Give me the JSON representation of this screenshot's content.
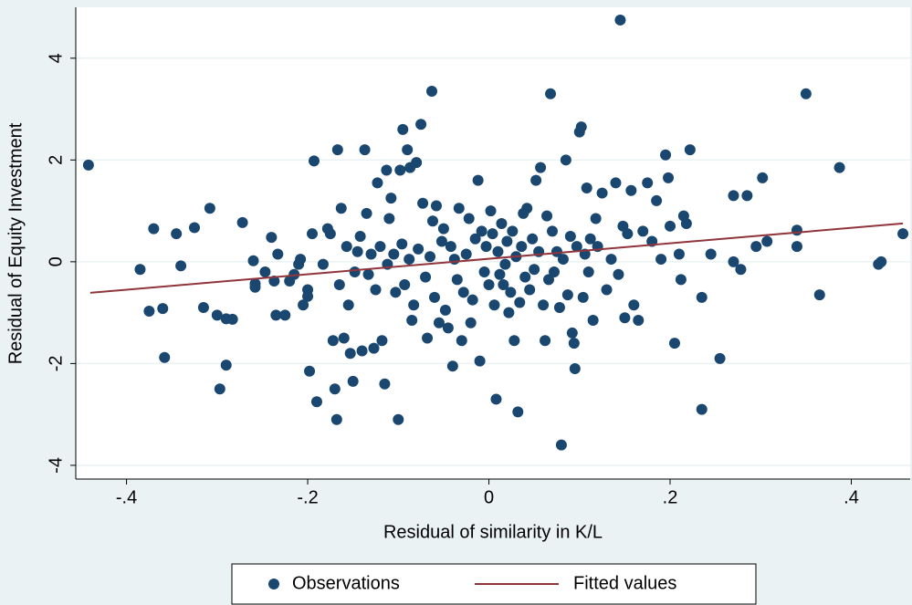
{
  "chart_data": {
    "type": "scatter",
    "x_label": "Residual of similarity in K/L",
    "y_label": "Residual of Equity Investment",
    "xlim": [
      -0.456,
      0.465
    ],
    "ylim": [
      -4.27,
      5.0
    ],
    "xticks": [
      {
        "value": -0.4,
        "label": "-.4"
      },
      {
        "value": -0.2,
        "label": "-.2"
      },
      0,
      {
        "value": 0.2,
        "label": ".2"
      },
      {
        "value": 0.4,
        "label": ".4"
      }
    ],
    "yticks": [
      -4,
      -2,
      0,
      2,
      4
    ],
    "grid": true,
    "legend": "bottom",
    "series": [
      {
        "name": "Observations",
        "type": "scatter",
        "color": "#1a476f",
        "x": [
          -0.442,
          -0.385,
          -0.37,
          -0.375,
          -0.36,
          -0.358,
          -0.345,
          -0.34,
          -0.325,
          -0.315,
          -0.308,
          -0.3,
          -0.297,
          -0.29,
          -0.29,
          -0.283,
          -0.272,
          -0.26,
          -0.258,
          -0.258,
          -0.247,
          -0.24,
          -0.237,
          -0.235,
          -0.233,
          -0.225,
          -0.22,
          -0.215,
          -0.21,
          -0.208,
          -0.205,
          -0.2,
          -0.2,
          -0.198,
          -0.195,
          -0.193,
          -0.19,
          -0.183,
          -0.178,
          -0.175,
          -0.172,
          -0.17,
          -0.168,
          -0.167,
          -0.165,
          -0.163,
          -0.16,
          -0.157,
          -0.155,
          -0.153,
          -0.15,
          -0.148,
          -0.145,
          -0.142,
          -0.14,
          -0.137,
          -0.135,
          -0.133,
          -0.13,
          -0.127,
          -0.125,
          -0.123,
          -0.12,
          -0.118,
          -0.115,
          -0.113,
          -0.112,
          -0.11,
          -0.108,
          -0.105,
          -0.103,
          -0.1,
          -0.098,
          -0.096,
          -0.095,
          -0.093,
          -0.09,
          -0.088,
          -0.087,
          -0.085,
          -0.083,
          -0.08,
          -0.078,
          -0.075,
          -0.073,
          -0.07,
          -0.068,
          -0.065,
          -0.063,
          -0.062,
          -0.06,
          -0.058,
          -0.055,
          -0.052,
          -0.05,
          -0.048,
          -0.045,
          -0.042,
          -0.04,
          -0.038,
          -0.035,
          -0.033,
          -0.03,
          -0.028,
          -0.025,
          -0.022,
          -0.02,
          -0.018,
          -0.015,
          -0.012,
          -0.01,
          -0.008,
          -0.005,
          -0.003,
          0,
          0.002,
          0.004,
          0.006,
          0.008,
          0.01,
          0.012,
          0.014,
          0.016,
          0.018,
          0.02,
          0.022,
          0.024,
          0.026,
          0.028,
          0.03,
          0.032,
          0.034,
          0.036,
          0.038,
          0.04,
          0.042,
          0.045,
          0.048,
          0.05,
          0.052,
          0.055,
          0.057,
          0.06,
          0.062,
          0.064,
          0.066,
          0.068,
          0.07,
          0.072,
          0.075,
          0.078,
          0.08,
          0.082,
          0.085,
          0.087,
          0.09,
          0.092,
          0.094,
          0.095,
          0.097,
          0.1,
          0.102,
          0.104,
          0.106,
          0.108,
          0.11,
          0.112,
          0.115,
          0.118,
          0.12,
          0.125,
          0.13,
          0.135,
          0.14,
          0.143,
          0.145,
          0.148,
          0.15,
          0.153,
          0.157,
          0.16,
          0.165,
          0.17,
          0.175,
          0.18,
          0.185,
          0.19,
          0.195,
          0.198,
          0.2,
          0.205,
          0.21,
          0.212,
          0.215,
          0.218,
          0.222,
          0.235,
          0.235,
          0.245,
          0.255,
          0.27,
          0.27,
          0.278,
          0.285,
          0.295,
          0.302,
          0.307,
          0.34,
          0.34,
          0.35,
          0.365,
          0.387,
          0.43,
          0.433,
          0.457
        ],
        "values": [
          1.9,
          -0.15,
          0.65,
          -0.97,
          -0.92,
          -1.88,
          0.55,
          -0.08,
          0.67,
          -0.9,
          1.05,
          -1.05,
          -2.5,
          -1.12,
          -2.03,
          -1.13,
          0.77,
          0.02,
          -0.43,
          -0.5,
          -0.2,
          0.48,
          -0.38,
          -1.05,
          0.15,
          -1.05,
          -0.38,
          -0.25,
          -0.05,
          0.05,
          -0.85,
          -0.55,
          -0.68,
          -2.15,
          0.55,
          1.98,
          -2.75,
          -0.05,
          0.65,
          0.55,
          -1.55,
          -2.5,
          -3.1,
          2.2,
          -0.45,
          1.05,
          -1.5,
          0.3,
          -0.85,
          -1.8,
          -2.35,
          -0.2,
          0.2,
          0.5,
          -1.75,
          2.2,
          0.95,
          -0.25,
          0.15,
          -1.7,
          -0.55,
          1.55,
          0.3,
          -1.55,
          -2.4,
          1.8,
          -0.05,
          0.85,
          1.25,
          0.15,
          -0.6,
          -3.1,
          1.8,
          0.35,
          2.6,
          -0.45,
          2.2,
          0.05,
          1.85,
          -1.15,
          -0.85,
          1.95,
          0.25,
          2.7,
          1.15,
          -0.3,
          -1.5,
          0.1,
          3.35,
          0.8,
          -0.7,
          1.1,
          -1.2,
          0.4,
          0.65,
          -0.95,
          -1.3,
          0.3,
          -2.05,
          0.05,
          -0.35,
          1.05,
          -1.55,
          -0.6,
          0.15,
          0.85,
          -1.2,
          -0.75,
          0.45,
          1.6,
          -1.95,
          0.6,
          -0.2,
          0.3,
          -0.45,
          1.0,
          0.55,
          -0.85,
          -2.7,
          0.2,
          -0.25,
          0.75,
          -0.45,
          -0.05,
          0.4,
          -1.0,
          -0.6,
          0.6,
          -1.55,
          0.1,
          -2.95,
          -0.8,
          0.3,
          0.95,
          -0.3,
          1.05,
          -0.55,
          0.45,
          -0.15,
          1.6,
          0.2,
          1.85,
          -0.85,
          -1.55,
          0.9,
          -0.35,
          3.3,
          0.6,
          -0.2,
          0.2,
          -0.9,
          -3.6,
          0.05,
          2.0,
          -0.65,
          0.5,
          -1.4,
          -1.6,
          -2.1,
          0.3,
          2.55,
          2.65,
          -0.7,
          0.15,
          1.45,
          -0.2,
          0.45,
          -1.15,
          0.85,
          0.3,
          1.35,
          -0.55,
          0.05,
          1.55,
          -0.25,
          4.75,
          0.7,
          -1.1,
          0.55,
          1.4,
          -0.85,
          -1.15,
          0.6,
          1.55,
          0.4,
          1.2,
          0.05,
          2.1,
          1.65,
          0.7,
          -1.6,
          0.15,
          -0.35,
          0.9,
          0.75,
          2.2,
          -0.7,
          -2.9,
          0.15,
          -1.9,
          1.3,
          0,
          -0.15,
          1.3,
          0.3,
          1.65,
          0.4,
          0.3,
          0.62,
          3.3,
          -0.65,
          1.85,
          -0.05,
          0,
          0.55
        ]
      },
      {
        "name": "Fitted values",
        "type": "line",
        "color": "#90353b",
        "x": [
          -0.44,
          0.457
        ],
        "values": [
          -0.61,
          0.753
        ]
      }
    ]
  }
}
